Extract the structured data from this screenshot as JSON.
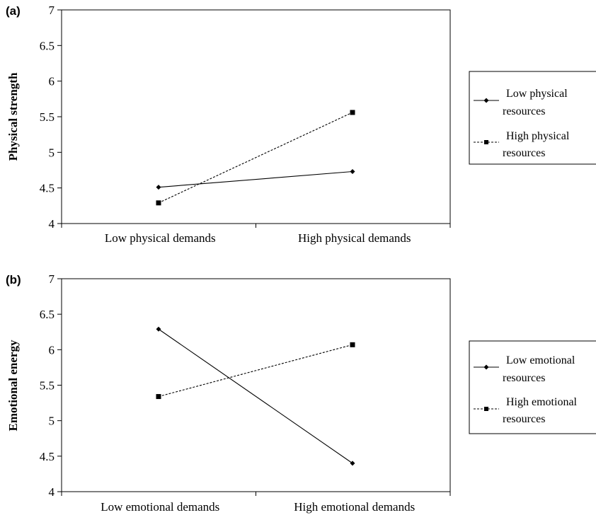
{
  "chart_data": [
    {
      "panel_label": "(a)",
      "type": "line",
      "categories": [
        "Low physical demands",
        "High physical demands"
      ],
      "ylabel": "Physical strength",
      "ylim": [
        4,
        7
      ],
      "yticks": [
        "4",
        "4.5",
        "5",
        "5.5",
        "6",
        "6.5",
        "7"
      ],
      "series": [
        {
          "name": "Low physical resources",
          "name_lines": [
            "Low physical",
            "resources"
          ],
          "values": [
            4.51,
            4.73
          ],
          "style": "solid",
          "marker": "diamond"
        },
        {
          "name": "High physical resources",
          "name_lines": [
            "High physical",
            "resources"
          ],
          "values": [
            4.29,
            5.56
          ],
          "style": "dashed",
          "marker": "square"
        }
      ]
    },
    {
      "panel_label": "(b)",
      "type": "line",
      "categories": [
        "Low emotional demands",
        "High emotional demands"
      ],
      "ylabel": "Emotional energy",
      "ylim": [
        4,
        7
      ],
      "yticks": [
        "4",
        "4.5",
        "5",
        "5.5",
        "6",
        "6.5",
        "7"
      ],
      "series": [
        {
          "name": "Low emotional resources",
          "name_lines": [
            "Low emotional",
            "resources"
          ],
          "values": [
            6.29,
            4.4
          ],
          "style": "solid",
          "marker": "diamond"
        },
        {
          "name": "High emotional resources",
          "name_lines": [
            "High emotional",
            "resources"
          ],
          "values": [
            5.34,
            6.07
          ],
          "style": "dashed",
          "marker": "square"
        }
      ]
    }
  ]
}
